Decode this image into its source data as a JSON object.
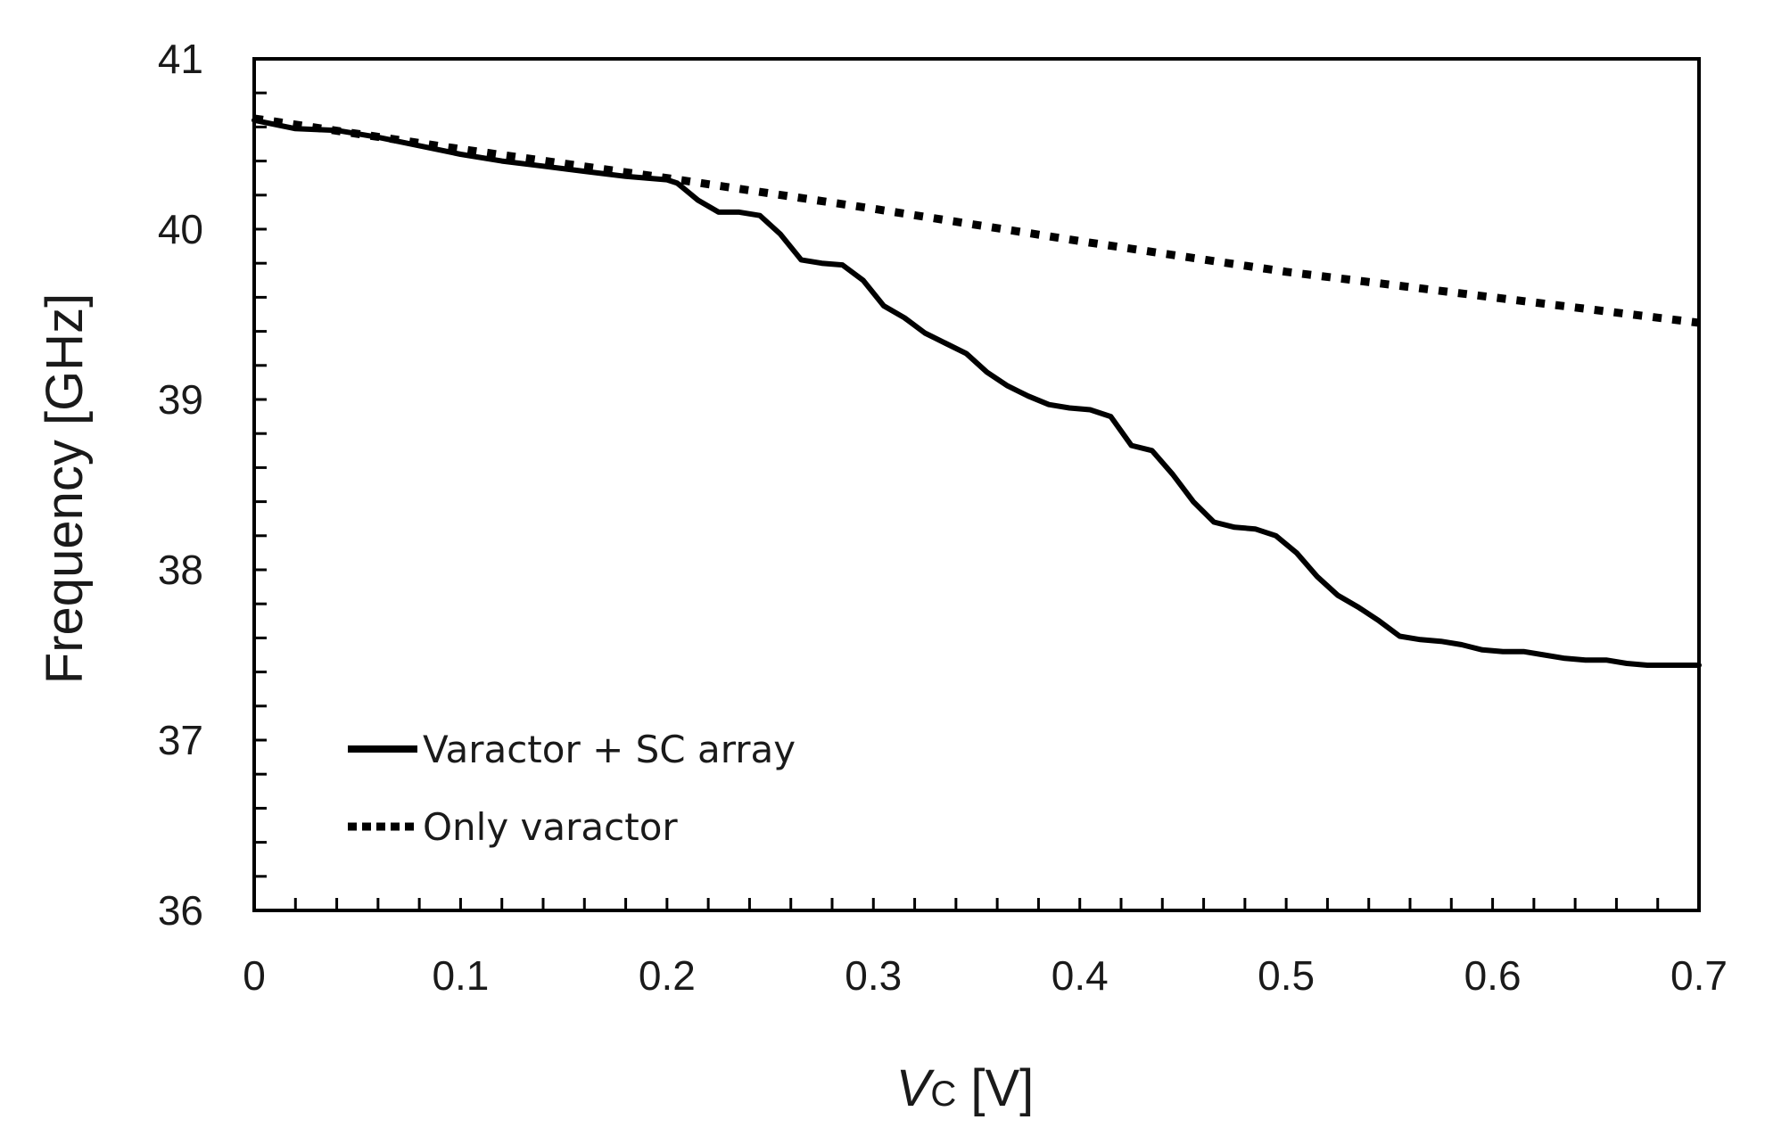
{
  "chart_data": {
    "type": "line",
    "title": "",
    "xlabel": {
      "main": "V",
      "sub": "C",
      "unit": " [V]"
    },
    "ylabel": "Frequency [GHz]",
    "xlim": [
      0,
      0.7
    ],
    "ylim": [
      36,
      41
    ],
    "x_ticks": [
      "0",
      "0.1",
      "0.2",
      "0.3",
      "0.4",
      "0.5",
      "0.6",
      "0.7"
    ],
    "y_ticks": [
      "36",
      "37",
      "38",
      "39",
      "40",
      "41"
    ],
    "grid": false,
    "legend": "lower-left inside",
    "series": [
      {
        "name": "Varactor + SC array",
        "style": "solid",
        "color": "#000000",
        "x": [
          0,
          0.02,
          0.04,
          0.06,
          0.08,
          0.1,
          0.12,
          0.14,
          0.16,
          0.18,
          0.2,
          0.205,
          0.215,
          0.225,
          0.235,
          0.245,
          0.255,
          0.265,
          0.275,
          0.285,
          0.295,
          0.305,
          0.315,
          0.325,
          0.335,
          0.345,
          0.355,
          0.365,
          0.375,
          0.385,
          0.395,
          0.405,
          0.415,
          0.425,
          0.435,
          0.445,
          0.455,
          0.465,
          0.475,
          0.485,
          0.495,
          0.505,
          0.515,
          0.525,
          0.535,
          0.545,
          0.555,
          0.565,
          0.575,
          0.585,
          0.595,
          0.605,
          0.615,
          0.625,
          0.635,
          0.645,
          0.655,
          0.665,
          0.675,
          0.685,
          0.695,
          0.7
        ],
        "values": [
          40.64,
          40.59,
          40.58,
          40.54,
          40.49,
          40.44,
          40.4,
          40.37,
          40.34,
          40.31,
          40.29,
          40.27,
          40.17,
          40.1,
          40.1,
          40.08,
          39.97,
          39.82,
          39.8,
          39.79,
          39.7,
          39.55,
          39.48,
          39.39,
          39.33,
          39.27,
          39.16,
          39.08,
          39.02,
          38.97,
          38.95,
          38.94,
          38.9,
          38.73,
          38.7,
          38.56,
          38.4,
          38.28,
          38.25,
          38.24,
          38.2,
          38.1,
          37.96,
          37.85,
          37.78,
          37.7,
          37.61,
          37.59,
          37.58,
          37.56,
          37.53,
          37.52,
          37.52,
          37.5,
          37.48,
          37.47,
          37.47,
          37.45,
          37.44,
          37.44,
          37.44,
          37.44
        ]
      },
      {
        "name": "Only varactor",
        "style": "dotted",
        "color": "#000000",
        "x": [
          0,
          0.1,
          0.2,
          0.3,
          0.4,
          0.5,
          0.6,
          0.7
        ],
        "values": [
          40.65,
          40.47,
          40.3,
          40.12,
          39.93,
          39.75,
          39.6,
          39.45
        ]
      }
    ]
  }
}
